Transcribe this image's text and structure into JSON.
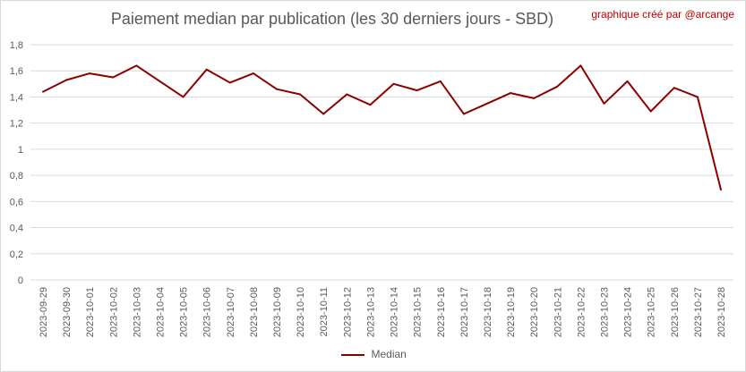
{
  "credit": "graphique créé par @arcange",
  "colors": {
    "series": "#8b0000",
    "grid": "#d9d9d9",
    "text": "#595959"
  },
  "chart_data": {
    "type": "line",
    "title": "Paiement median par publication (les 30 derniers jours - SBD)",
    "xlabel": "",
    "ylabel": "",
    "ylim": [
      0,
      1.8
    ],
    "ytick_step": 0.2,
    "ytick_labels": [
      "0",
      "0,2",
      "0,4",
      "0,6",
      "0,8",
      "1",
      "1,2",
      "1,4",
      "1,6",
      "1,8"
    ],
    "grid": true,
    "legend_position": "bottom",
    "categories": [
      "2023-09-29",
      "2023-09-30",
      "2023-10-01",
      "2023-10-02",
      "2023-10-03",
      "2023-10-04",
      "2023-10-05",
      "2023-10-06",
      "2023-10-07",
      "2023-10-08",
      "2023-10-09",
      "2023-10-10",
      "2023-10-11",
      "2023-10-12",
      "2023-10-13",
      "2023-10-14",
      "2023-10-15",
      "2023-10-16",
      "2023-10-17",
      "2023-10-18",
      "2023-10-19",
      "2023-10-20",
      "2023-10-21",
      "2023-10-22",
      "2023-10-23",
      "2023-10-24",
      "2023-10-25",
      "2023-10-26",
      "2023-10-27",
      "2023-10-28"
    ],
    "series": [
      {
        "name": "Median",
        "values": [
          1.44,
          1.53,
          1.58,
          1.55,
          1.64,
          1.52,
          1.4,
          1.61,
          1.51,
          1.58,
          1.46,
          1.42,
          1.27,
          1.42,
          1.34,
          1.5,
          1.45,
          1.52,
          1.27,
          1.35,
          1.43,
          1.39,
          1.48,
          1.64,
          1.35,
          1.52,
          1.29,
          1.47,
          1.4,
          0.69
        ]
      }
    ]
  }
}
